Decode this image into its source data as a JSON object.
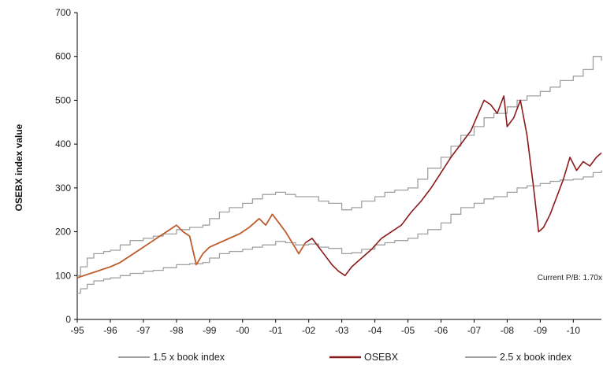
{
  "chart_data": {
    "type": "line",
    "title": "",
    "ylabel": "OSEBX index value",
    "xlabel": "",
    "ylim": [
      0,
      700
    ],
    "yticks": [
      0,
      100,
      200,
      300,
      400,
      500,
      600,
      700
    ],
    "xlim": [
      1995,
      2010.85
    ],
    "xticks": [
      {
        "value": 1995,
        "label": "-95"
      },
      {
        "value": 1996,
        "label": "-96"
      },
      {
        "value": 1997,
        "label": "-97"
      },
      {
        "value": 1998,
        "label": "-98"
      },
      {
        "value": 1999,
        "label": "-99"
      },
      {
        "value": 2000,
        "label": "-00"
      },
      {
        "value": 2001,
        "label": "-01"
      },
      {
        "value": 2002,
        "label": "-02"
      },
      {
        "value": 2003,
        "label": "-03"
      },
      {
        "value": 2004,
        "label": "-04"
      },
      {
        "value": 2005,
        "label": "-05"
      },
      {
        "value": 2006,
        "label": "-06"
      },
      {
        "value": 2007,
        "label": "-07"
      },
      {
        "value": 2008,
        "label": "-08"
      },
      {
        "value": 2009,
        "label": "-09"
      },
      {
        "value": 2010,
        "label": "-10"
      }
    ],
    "grid": false,
    "legend_position": "bottom",
    "annotation": "Current P/B:  1.70x",
    "series": [
      {
        "name": "1.5 x book index",
        "color": "#a0a0a0",
        "step": true,
        "x": [
          1995.0,
          1995.1,
          1995.3,
          1995.5,
          1995.8,
          1996.0,
          1996.3,
          1996.6,
          1997.0,
          1997.3,
          1997.6,
          1998.0,
          1998.4,
          1998.8,
          1999.0,
          1999.3,
          1999.6,
          2000.0,
          2000.3,
          2000.6,
          2001.0,
          2001.3,
          2001.6,
          2002.0,
          2002.3,
          2002.6,
          2003.0,
          2003.3,
          2003.6,
          2004.0,
          2004.3,
          2004.6,
          2005.0,
          2005.3,
          2005.6,
          2006.0,
          2006.3,
          2006.6,
          2007.0,
          2007.3,
          2007.6,
          2008.0,
          2008.3,
          2008.6,
          2009.0,
          2009.3,
          2009.6,
          2010.0,
          2010.3,
          2010.6,
          2010.85
        ],
        "y": [
          60,
          70,
          80,
          88,
          92,
          95,
          100,
          105,
          110,
          112,
          118,
          125,
          127,
          130,
          140,
          150,
          155,
          160,
          165,
          170,
          178,
          175,
          170,
          172,
          165,
          162,
          150,
          152,
          160,
          170,
          175,
          180,
          185,
          195,
          205,
          220,
          240,
          255,
          265,
          275,
          280,
          290,
          300,
          305,
          310,
          315,
          318,
          320,
          325,
          335,
          340
        ]
      },
      {
        "name": "OSEBX",
        "color": "#8b1a1a",
        "color_early": "#c0602a",
        "step": false,
        "x": [
          1995.0,
          1995.2,
          1995.4,
          1995.6,
          1995.8,
          1996.0,
          1996.3,
          1996.6,
          1996.9,
          1997.2,
          1997.5,
          1997.8,
          1998.0,
          1998.2,
          1998.4,
          1998.6,
          1998.8,
          1999.0,
          1999.3,
          1999.6,
          1999.9,
          2000.2,
          2000.5,
          2000.7,
          2000.9,
          2001.1,
          2001.3,
          2001.5,
          2001.7,
          2001.9,
          2002.1,
          2002.3,
          2002.5,
          2002.7,
          2002.9,
          2003.1,
          2003.3,
          2003.6,
          2003.9,
          2004.2,
          2004.5,
          2004.8,
          2005.1,
          2005.4,
          2005.7,
          2006.0,
          2006.3,
          2006.6,
          2006.9,
          2007.1,
          2007.3,
          2007.5,
          2007.7,
          2007.9,
          2008.0,
          2008.2,
          2008.4,
          2008.6,
          2008.8,
          2008.95,
          2009.1,
          2009.3,
          2009.5,
          2009.7,
          2009.9,
          2010.1,
          2010.3,
          2010.5,
          2010.7,
          2010.85
        ],
        "y": [
          95,
          100,
          105,
          110,
          115,
          120,
          130,
          145,
          160,
          175,
          190,
          205,
          215,
          200,
          190,
          125,
          150,
          165,
          175,
          185,
          195,
          210,
          230,
          215,
          240,
          220,
          200,
          175,
          150,
          175,
          185,
          165,
          145,
          125,
          110,
          100,
          120,
          140,
          160,
          185,
          200,
          215,
          245,
          270,
          300,
          335,
          370,
          400,
          430,
          465,
          500,
          490,
          470,
          510,
          440,
          460,
          500,
          420,
          300,
          200,
          210,
          240,
          280,
          320,
          370,
          340,
          360,
          350,
          370,
          380
        ]
      },
      {
        "name": "2.5 x book index",
        "color": "#a0a0a0",
        "step": true,
        "x": [
          1995.0,
          1995.1,
          1995.3,
          1995.5,
          1995.8,
          1996.0,
          1996.3,
          1996.6,
          1997.0,
          1997.3,
          1997.6,
          1998.0,
          1998.4,
          1998.8,
          1999.0,
          1999.3,
          1999.6,
          2000.0,
          2000.3,
          2000.6,
          2001.0,
          2001.3,
          2001.6,
          2002.0,
          2002.3,
          2002.6,
          2003.0,
          2003.3,
          2003.6,
          2004.0,
          2004.3,
          2004.6,
          2005.0,
          2005.3,
          2005.6,
          2006.0,
          2006.3,
          2006.6,
          2007.0,
          2007.3,
          2007.6,
          2008.0,
          2008.3,
          2008.6,
          2009.0,
          2009.3,
          2009.6,
          2010.0,
          2010.3,
          2010.6,
          2010.85
        ],
        "y": [
          100,
          120,
          140,
          150,
          155,
          158,
          170,
          180,
          185,
          190,
          195,
          205,
          210,
          215,
          230,
          245,
          255,
          265,
          275,
          285,
          290,
          285,
          280,
          280,
          270,
          265,
          250,
          255,
          270,
          280,
          290,
          295,
          300,
          320,
          345,
          370,
          395,
          420,
          440,
          460,
          470,
          485,
          500,
          510,
          520,
          530,
          545,
          555,
          570,
          600,
          590
        ]
      }
    ]
  }
}
